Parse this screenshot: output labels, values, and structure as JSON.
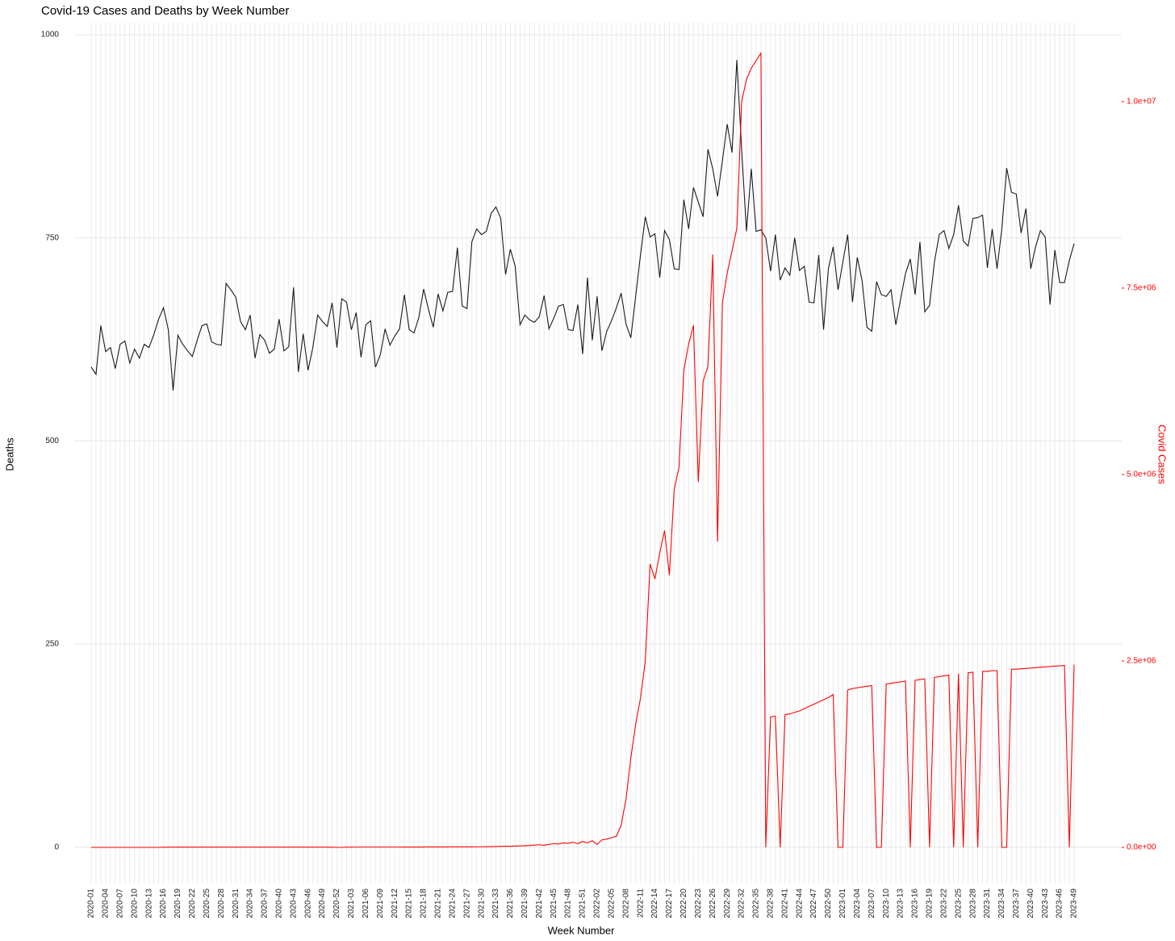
{
  "chart_data": {
    "type": "line",
    "title": "Covid-19 Cases and Deaths by Week Number",
    "x_label": "Week Number",
    "y_label": "Deaths",
    "y2_label": "Covid Cases",
    "categories": [
      "2020-01",
      null,
      null,
      "2020-04",
      null,
      null,
      "2020-07",
      null,
      null,
      "2020-10",
      null,
      null,
      "2020-13",
      null,
      null,
      "2020-16",
      null,
      null,
      "2020-19",
      null,
      null,
      "2020-22",
      null,
      null,
      "2020-25",
      null,
      null,
      "2020-28",
      null,
      null,
      "2020-31",
      null,
      null,
      "2020-34",
      null,
      null,
      "2020-37",
      null,
      null,
      "2020-40",
      null,
      null,
      "2020-43",
      null,
      null,
      "2020-46",
      null,
      null,
      "2020-49",
      null,
      null,
      "2020-52",
      null,
      null,
      "2021-03",
      null,
      null,
      "2021-06",
      null,
      null,
      "2021-09",
      null,
      null,
      "2021-12",
      null,
      null,
      "2021-15",
      null,
      null,
      "2021-18",
      null,
      null,
      "2021-21",
      null,
      null,
      "2021-24",
      null,
      null,
      "2021-27",
      null,
      null,
      "2021-30",
      null,
      null,
      "2021-33",
      null,
      null,
      "2021-36",
      null,
      null,
      "2021-39",
      null,
      null,
      "2021-42",
      null,
      null,
      "2021-45",
      null,
      null,
      "2021-48",
      null,
      null,
      "2021-51",
      null,
      null,
      "2022-02",
      null,
      null,
      "2022-05",
      null,
      null,
      "2022-08",
      null,
      null,
      "2022-11",
      null,
      null,
      "2022-14",
      null,
      null,
      "2022-17",
      null,
      null,
      "2022-20",
      null,
      null,
      "2022-23",
      null,
      null,
      "2022-26",
      null,
      null,
      "2022-29",
      null,
      null,
      "2022-32",
      null,
      null,
      "2022-35",
      null,
      null,
      "2022-38",
      null,
      null,
      "2022-41",
      null,
      null,
      "2022-44",
      null,
      null,
      "2022-47",
      null,
      null,
      "2022-50",
      null,
      null,
      "2023-01",
      null,
      null,
      "2023-04",
      null,
      null,
      "2023-07",
      null,
      null,
      "2023-10",
      null,
      null,
      "2023-13",
      null,
      null,
      "2023-16",
      null,
      null,
      "2023-19",
      null,
      null,
      "2023-22",
      null,
      null,
      "2023-25",
      null,
      null,
      "2023-28",
      null,
      null,
      "2023-31",
      null,
      null,
      "2023-34",
      null,
      null,
      "2023-37",
      null,
      null,
      "2023-40",
      null,
      null,
      "2023-43",
      null,
      null,
      "2023-46",
      null,
      null,
      "2023-49"
    ],
    "series": [
      {
        "name": "Deaths",
        "color": "#1a1a1a",
        "axis": "y",
        "values": [
          591,
          582,
          642,
          610,
          615,
          589,
          619,
          623,
          596,
          613,
          602,
          619,
          615,
          631,
          650,
          664,
          637,
          562,
          630,
          619,
          611,
          604,
          624,
          642,
          644,
          622,
          619,
          618,
          694,
          686,
          677,
          647,
          637,
          655,
          602,
          631,
          624,
          608,
          613,
          650,
          611,
          616,
          689,
          585,
          632,
          587,
          615,
          655,
          647,
          641,
          670,
          615,
          675,
          671,
          637,
          658,
          603,
          643,
          648,
          591,
          606,
          638,
          618,
          629,
          638,
          680,
          637,
          633,
          652,
          687,
          662,
          640,
          681,
          660,
          683,
          684,
          738,
          666,
          663,
          745,
          761,
          754,
          758,
          780,
          788,
          774,
          705,
          736,
          715,
          643,
          655,
          649,
          646,
          653,
          679,
          638,
          651,
          666,
          668,
          637,
          636,
          668,
          607,
          701,
          624,
          678,
          611,
          635,
          648,
          664,
          682,
          644,
          627,
          678,
          729,
          776,
          751,
          755,
          701,
          759,
          748,
          712,
          711,
          797,
          761,
          812,
          794,
          776,
          859,
          835,
          801,
          845,
          890,
          855,
          969,
          858,
          758,
          835,
          758,
          760,
          750,
          709,
          754,
          698,
          713,
          704,
          750,
          710,
          715,
          671,
          670,
          729,
          637,
          712,
          739,
          686,
          720,
          754,
          671,
          726,
          697,
          640,
          635,
          696,
          680,
          678,
          686,
          643,
          675,
          706,
          724,
          680,
          745,
          659,
          667,
          720,
          754,
          759,
          737,
          754,
          790,
          746,
          740,
          774,
          775,
          778,
          713,
          761,
          712,
          761,
          836,
          806,
          804,
          756,
          786,
          712,
          739,
          759,
          751,
          668,
          735,
          695,
          695,
          722,
          743
        ]
      },
      {
        "name": "Covid Cases",
        "color": "#ff0000",
        "axis": "y2",
        "values": [
          0,
          0,
          0,
          0,
          0,
          0,
          0,
          0,
          0,
          0,
          0,
          0,
          0,
          0,
          0,
          2000,
          3000,
          3000,
          3000,
          3000,
          3000,
          3000,
          3000,
          3000,
          3000,
          3000,
          3000,
          3000,
          3000,
          3000,
          3000,
          3000,
          3000,
          3000,
          3000,
          3000,
          3000,
          3000,
          3000,
          3000,
          3000,
          3000,
          3000,
          3000,
          3000,
          3000,
          3000,
          3000,
          3000,
          3000,
          2000,
          0,
          0,
          4000,
          2000,
          4000,
          4000,
          4000,
          4000,
          4000,
          4000,
          4000,
          4000,
          4000,
          4000,
          5000,
          5000,
          5000,
          5000,
          5000,
          6000,
          6000,
          6000,
          6000,
          6000,
          7000,
          7000,
          7000,
          7000,
          7000,
          8000,
          8000,
          9000,
          10000,
          12000,
          14000,
          15000,
          16000,
          18000,
          20000,
          22000,
          25000,
          30000,
          35000,
          28000,
          40000,
          50000,
          45000,
          60000,
          55000,
          70000,
          50000,
          80000,
          60000,
          90000,
          40000,
          100000,
          110000,
          130000,
          150000,
          300000,
          650000,
          1200000,
          1650000,
          2000000,
          2500000,
          3800000,
          3600000,
          3950000,
          4250000,
          3650000,
          4800000,
          5100000,
          6400000,
          6750000,
          7000000,
          4900000,
          6250000,
          6450000,
          7950000,
          4100000,
          7300000,
          7700000,
          8000000,
          8300000,
          10000000,
          10300000,
          10450000,
          10550000,
          10650000,
          0,
          1750000,
          1760000,
          0,
          1780000,
          1790000,
          1810000,
          1830000,
          1860000,
          1890000,
          1920000,
          1950000,
          1980000,
          2010000,
          2050000,
          0,
          0,
          2110000,
          2130000,
          2140000,
          2150000,
          2160000,
          2170000,
          0,
          0,
          2190000,
          2200000,
          2210000,
          2220000,
          2230000,
          0,
          2240000,
          2250000,
          2260000,
          0,
          2280000,
          2290000,
          2300000,
          2310000,
          0,
          2330000,
          0,
          2340000,
          2350000,
          0,
          2360000,
          2360000,
          2370000,
          2370000,
          0,
          0,
          2390000,
          2390000,
          2395000,
          2400000,
          2405000,
          2410000,
          2415000,
          2420000,
          2425000,
          2430000,
          2435000,
          2440000,
          0,
          2450000
        ]
      }
    ],
    "ylim": [
      -45,
      1015
    ],
    "yticks": [
      0,
      250,
      500,
      750,
      1000
    ],
    "y2lim": [
      -487000,
      11060000
    ],
    "y2ticks": [
      {
        "value": 0,
        "label": "0.0e+00"
      },
      {
        "value": 2500000,
        "label": "2.5e+06"
      },
      {
        "value": 5000000,
        "label": "5.0e+06"
      },
      {
        "value": 7500000,
        "label": "7.5e+06"
      },
      {
        "value": 10000000,
        "label": "1.0e+07"
      }
    ],
    "y2_color": "#ff0000",
    "grid": true
  }
}
